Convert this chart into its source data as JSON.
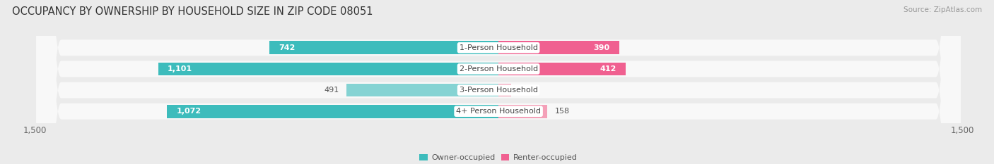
{
  "title": "OCCUPANCY BY OWNERSHIP BY HOUSEHOLD SIZE IN ZIP CODE 08051",
  "source": "Source: ZipAtlas.com",
  "categories": [
    "1-Person Household",
    "2-Person Household",
    "3-Person Household",
    "4+ Person Household"
  ],
  "owner_values": [
    742,
    1101,
    491,
    1072
  ],
  "renter_values": [
    390,
    412,
    40,
    158
  ],
  "owner_colors": [
    "#3DBCBC",
    "#3DBCBC",
    "#85D3D3",
    "#3DBCBC"
  ],
  "renter_colors": [
    "#F06090",
    "#F06090",
    "#F4A0B8",
    "#F4A0B8"
  ],
  "owner_label": "Owner-occupied",
  "renter_label": "Renter-occupied",
  "legend_owner_color": "#3DBCBC",
  "legend_renter_color": "#F06090",
  "axis_max": 1500,
  "axis_min": -1500,
  "bar_height": 0.62,
  "background_color": "#ebebeb",
  "bar_bg_color": "#f8f8f8",
  "title_fontsize": 10.5,
  "source_fontsize": 7.5,
  "label_fontsize": 8,
  "axis_fontsize": 8.5
}
